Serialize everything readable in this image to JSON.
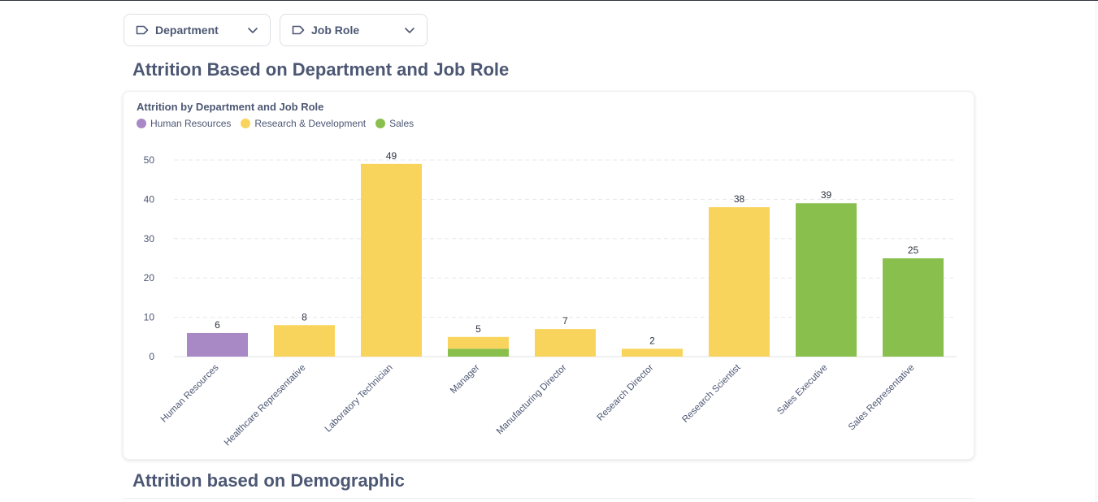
{
  "filters": [
    {
      "label": "Department",
      "icon": "tag-icon"
    },
    {
      "label": "Job Role",
      "icon": "tag-icon"
    }
  ],
  "sections": {
    "first_title": "Attrition Based on Department and Job Role",
    "second_title": "Attrition based on Demographic"
  },
  "chart_data": {
    "type": "bar",
    "stacked": true,
    "title": "Attrition by Department and Job Role",
    "xlabel": "",
    "ylabel": "",
    "ylim": [
      0,
      50
    ],
    "yticks": [
      0,
      10,
      20,
      30,
      40,
      50
    ],
    "grid": true,
    "legend_position": "top-left",
    "categories": [
      "Human Resources",
      "Healthcare Representative",
      "Laboratory Technician",
      "Manager",
      "Manufacturing Director",
      "Research Director",
      "Research Scientist",
      "Sales Executive",
      "Sales Representative"
    ],
    "series": [
      {
        "name": "Human Resources",
        "color": "#a989c5",
        "values": [
          6,
          0,
          0,
          0,
          0,
          0,
          0,
          0,
          0
        ]
      },
      {
        "name": "Sales",
        "color": "#88bf4d",
        "values": [
          0,
          0,
          0,
          2,
          0,
          0,
          0,
          39,
          25
        ]
      },
      {
        "name": "Research & Development",
        "color": "#f9d45c",
        "values": [
          0,
          8,
          49,
          3,
          7,
          2,
          38,
          0,
          0
        ]
      }
    ],
    "legend_order": [
      "Human Resources",
      "Research & Development",
      "Sales"
    ],
    "totals": [
      6,
      8,
      49,
      5,
      7,
      2,
      38,
      39,
      25
    ]
  }
}
